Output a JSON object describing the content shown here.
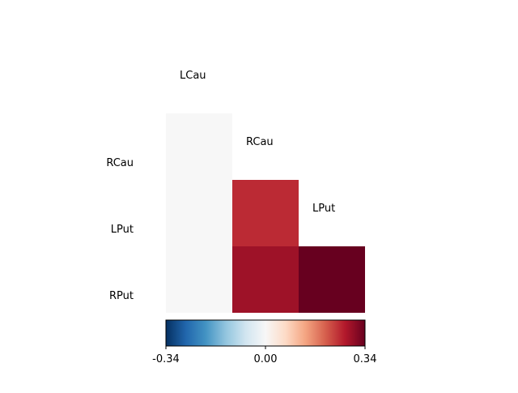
{
  "chart_data": {
    "type": "heatmap",
    "layout": "lower-triangle",
    "regions": [
      "LCau",
      "RCau",
      "LPut",
      "RPut"
    ],
    "column_labels": [
      "LCau",
      "RCau",
      "LPut"
    ],
    "row_labels": [
      "RCau",
      "LPut",
      "RPut"
    ],
    "cells": [
      {
        "row": "RCau",
        "col": "LCau",
        "value": 0.0
      },
      {
        "row": "LPut",
        "col": "LCau",
        "value": 0.0
      },
      {
        "row": "LPut",
        "col": "RCau",
        "value": 0.255
      },
      {
        "row": "RPut",
        "col": "LCau",
        "value": 0.0
      },
      {
        "row": "RPut",
        "col": "RCau",
        "value": 0.29
      },
      {
        "row": "RPut",
        "col": "LPut",
        "value": 0.34
      }
    ],
    "colormap": "RdBu_r",
    "vmin": -0.34,
    "vmax": 0.34,
    "colorbar": {
      "orientation": "horizontal",
      "ticks": [
        -0.34,
        0.0,
        0.34
      ],
      "tick_labels": [
        "-0.34",
        "0.00",
        "0.34"
      ]
    }
  }
}
